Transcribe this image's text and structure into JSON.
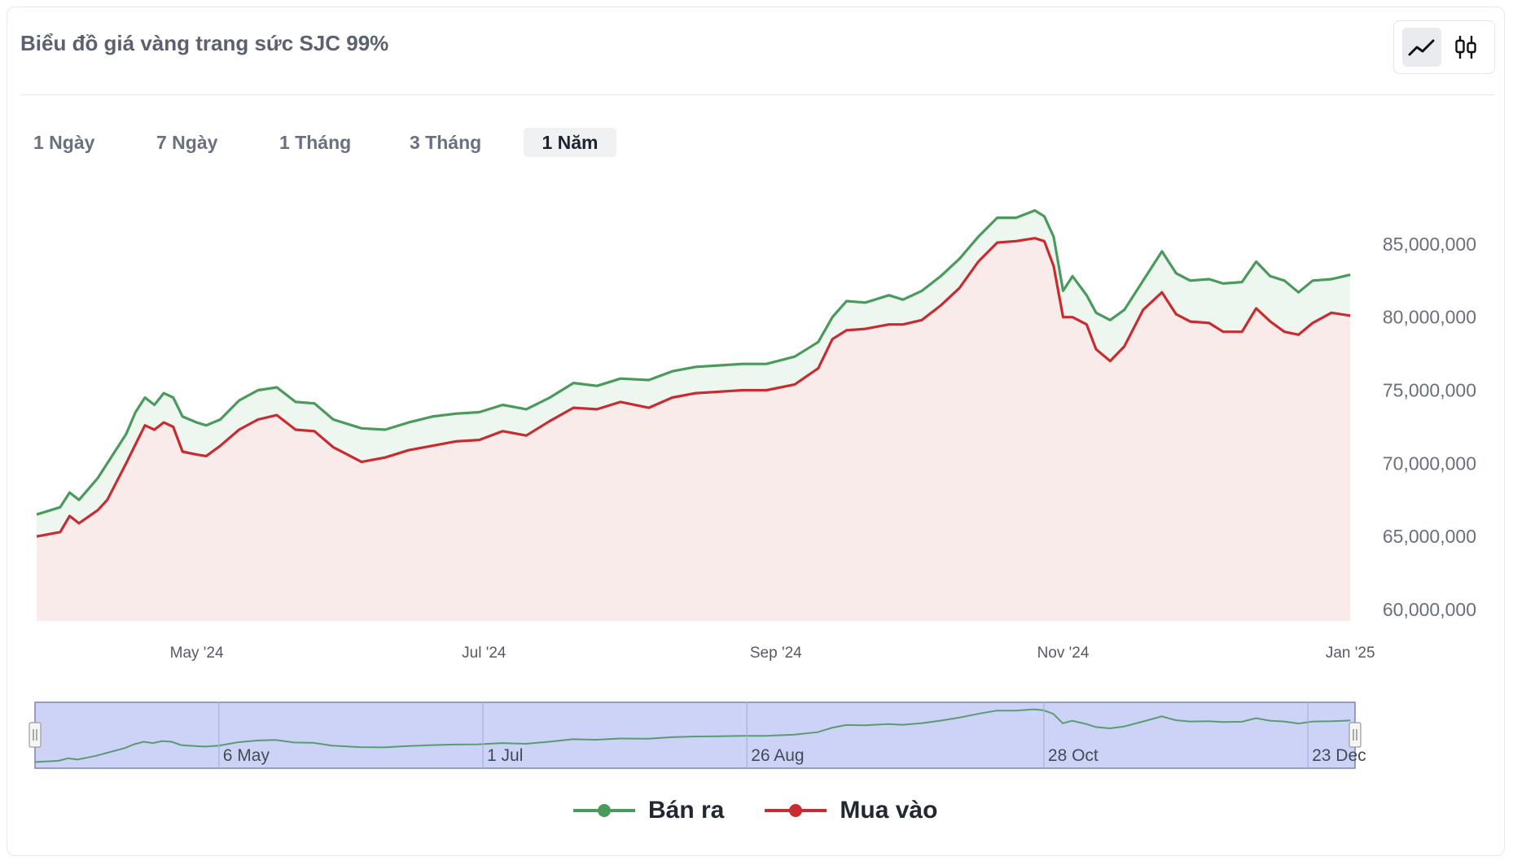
{
  "header": {
    "title": "Biểu đồ giá vàng trang sức SJC 99%"
  },
  "view_toggle": {
    "line_icon": "line-chart-icon",
    "candle_icon": "candlestick-icon"
  },
  "tabs": [
    {
      "label": "1 Ngày"
    },
    {
      "label": "7 Ngày"
    },
    {
      "label": "1 Tháng"
    },
    {
      "label": "3 Tháng"
    },
    {
      "label": "1 Năm"
    }
  ],
  "active_tab": "1 Năm",
  "navigator": {
    "labels": [
      "6 May",
      "1 Jul",
      "26 Aug",
      "28 Oct",
      "23 Dec"
    ]
  },
  "colors": {
    "sell": "#4a9a5c",
    "buy": "#c72c30",
    "sell_fill": "#eef7ef",
    "buy_fill": "#f9ebea",
    "navigator_bg": "#cdd3f6"
  },
  "chart_data": {
    "type": "line",
    "title": "Biểu đồ giá vàng trang sức SJC 99%",
    "xlabel": "",
    "ylabel": "",
    "ylim": [
      60000000,
      87500000
    ],
    "xlim": [
      "2024-03-28",
      "2025-01-02"
    ],
    "y_ticks": [
      60000000,
      65000000,
      70000000,
      75000000,
      80000000,
      85000000
    ],
    "y_tick_labels": [
      "60,000,000",
      "65,000,000",
      "70,000,000",
      "75,000,000",
      "80,000,000",
      "85,000,000"
    ],
    "x_ticks": [
      "2024-05-01",
      "2024-07-01",
      "2024-09-01",
      "2024-11-01",
      "2025-01-01"
    ],
    "x_tick_labels": [
      "May '24",
      "Jul '24",
      "Sep '24",
      "Nov '24",
      "Jan '25"
    ],
    "legend": "bottom-center",
    "series": [
      {
        "name": "Bán ra",
        "x": [
          "2024-03-28",
          "2024-04-02",
          "2024-04-04",
          "2024-04-06",
          "2024-04-10",
          "2024-04-12",
          "2024-04-16",
          "2024-04-18",
          "2024-04-20",
          "2024-04-22",
          "2024-04-24",
          "2024-04-26",
          "2024-04-28",
          "2024-05-01",
          "2024-05-03",
          "2024-05-06",
          "2024-05-10",
          "2024-05-14",
          "2024-05-18",
          "2024-05-22",
          "2024-05-26",
          "2024-05-30",
          "2024-06-05",
          "2024-06-10",
          "2024-06-15",
          "2024-06-20",
          "2024-06-25",
          "2024-06-30",
          "2024-07-05",
          "2024-07-10",
          "2024-07-15",
          "2024-07-20",
          "2024-07-25",
          "2024-07-30",
          "2024-08-05",
          "2024-08-10",
          "2024-08-15",
          "2024-08-20",
          "2024-08-25",
          "2024-08-30",
          "2024-09-05",
          "2024-09-10",
          "2024-09-13",
          "2024-09-16",
          "2024-09-20",
          "2024-09-25",
          "2024-09-28",
          "2024-10-02",
          "2024-10-06",
          "2024-10-10",
          "2024-10-14",
          "2024-10-18",
          "2024-10-22",
          "2024-10-26",
          "2024-10-28",
          "2024-10-30",
          "2024-11-01",
          "2024-11-03",
          "2024-11-06",
          "2024-11-08",
          "2024-11-11",
          "2024-11-14",
          "2024-11-18",
          "2024-11-22",
          "2024-11-25",
          "2024-11-28",
          "2024-12-02",
          "2024-12-05",
          "2024-12-09",
          "2024-12-12",
          "2024-12-15",
          "2024-12-18",
          "2024-12-21",
          "2024-12-24",
          "2024-12-28",
          "2025-01-01"
        ],
        "values": [
          66500000,
          67000000,
          68000000,
          67500000,
          69000000,
          70000000,
          72000000,
          73500000,
          74500000,
          74000000,
          74800000,
          74500000,
          73200000,
          72800000,
          72600000,
          73000000,
          74300000,
          75000000,
          75200000,
          74200000,
          74100000,
          73000000,
          72400000,
          72300000,
          72800000,
          73200000,
          73400000,
          73500000,
          74000000,
          73700000,
          74500000,
          75500000,
          75300000,
          75800000,
          75700000,
          76300000,
          76600000,
          76700000,
          76800000,
          76800000,
          77300000,
          78300000,
          80000000,
          81100000,
          81000000,
          81500000,
          81200000,
          81800000,
          82800000,
          84000000,
          85500000,
          86800000,
          86800000,
          87300000,
          86900000,
          85500000,
          81800000,
          82800000,
          81500000,
          80300000,
          79800000,
          80500000,
          82500000,
          84500000,
          83000000,
          82500000,
          82600000,
          82300000,
          82400000,
          83800000,
          82800000,
          82500000,
          81700000,
          82500000,
          82600000,
          82900000
        ],
        "color": "#4a9a5c"
      },
      {
        "name": "Mua vào",
        "x": [
          "2024-03-28",
          "2024-04-02",
          "2024-04-04",
          "2024-04-06",
          "2024-04-10",
          "2024-04-12",
          "2024-04-16",
          "2024-04-18",
          "2024-04-20",
          "2024-04-22",
          "2024-04-24",
          "2024-04-26",
          "2024-04-28",
          "2024-05-01",
          "2024-05-03",
          "2024-05-06",
          "2024-05-10",
          "2024-05-14",
          "2024-05-18",
          "2024-05-22",
          "2024-05-26",
          "2024-05-30",
          "2024-06-05",
          "2024-06-10",
          "2024-06-15",
          "2024-06-20",
          "2024-06-25",
          "2024-06-30",
          "2024-07-05",
          "2024-07-10",
          "2024-07-15",
          "2024-07-20",
          "2024-07-25",
          "2024-07-30",
          "2024-08-05",
          "2024-08-10",
          "2024-08-15",
          "2024-08-20",
          "2024-08-25",
          "2024-08-30",
          "2024-09-05",
          "2024-09-10",
          "2024-09-13",
          "2024-09-16",
          "2024-09-20",
          "2024-09-25",
          "2024-09-28",
          "2024-10-02",
          "2024-10-06",
          "2024-10-10",
          "2024-10-14",
          "2024-10-18",
          "2024-10-22",
          "2024-10-26",
          "2024-10-28",
          "2024-10-30",
          "2024-11-01",
          "2024-11-03",
          "2024-11-06",
          "2024-11-08",
          "2024-11-11",
          "2024-11-14",
          "2024-11-18",
          "2024-11-22",
          "2024-11-25",
          "2024-11-28",
          "2024-12-02",
          "2024-12-05",
          "2024-12-09",
          "2024-12-12",
          "2024-12-15",
          "2024-12-18",
          "2024-12-21",
          "2024-12-24",
          "2024-12-28",
          "2025-01-01"
        ],
        "values": [
          65000000,
          65300000,
          66400000,
          65900000,
          66800000,
          67500000,
          70000000,
          71300000,
          72600000,
          72300000,
          72800000,
          72500000,
          70800000,
          70600000,
          70500000,
          71200000,
          72300000,
          73000000,
          73300000,
          72300000,
          72200000,
          71100000,
          70100000,
          70400000,
          70900000,
          71200000,
          71500000,
          71600000,
          72200000,
          71900000,
          72900000,
          73800000,
          73700000,
          74200000,
          73800000,
          74500000,
          74800000,
          74900000,
          75000000,
          75000000,
          75400000,
          76500000,
          78500000,
          79100000,
          79200000,
          79500000,
          79500000,
          79800000,
          80800000,
          82000000,
          83800000,
          85100000,
          85200000,
          85400000,
          85200000,
          83500000,
          80000000,
          80000000,
          79500000,
          77800000,
          77000000,
          78000000,
          80500000,
          81700000,
          80200000,
          79700000,
          79600000,
          79000000,
          79000000,
          80600000,
          79700000,
          79000000,
          78800000,
          79600000,
          80300000,
          80100000
        ],
        "color": "#c72c30"
      }
    ]
  },
  "legend": {
    "sell_label": "Bán ra",
    "buy_label": "Mua vào"
  }
}
